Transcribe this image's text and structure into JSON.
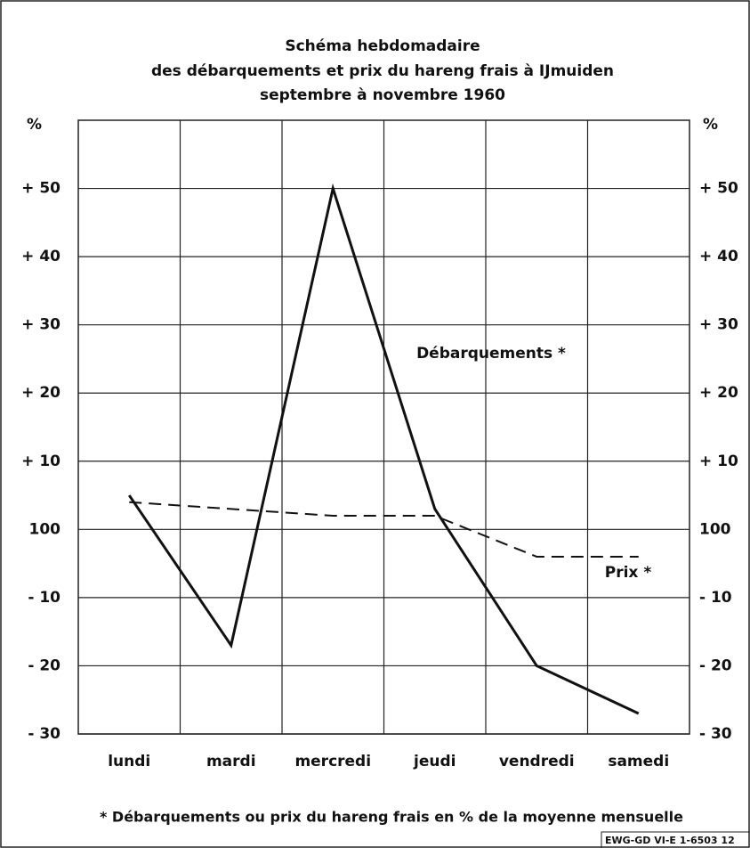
{
  "chart_data": {
    "type": "line",
    "title": [
      "Schéma hebdomadaire",
      "des débarquements et prix du hareng frais à IJmuiden",
      "septembre à novembre 1960"
    ],
    "y_axis_label": "%",
    "y2_axis_label": "%",
    "categories": [
      "lundi",
      "mardi",
      "mercredi",
      "jeudi",
      "vendredi",
      "samedi"
    ],
    "series": [
      {
        "name": "Débarquements *",
        "color": "#111111",
        "line_style": "solid",
        "values": [
          5,
          -17,
          50,
          3,
          -20,
          -27
        ]
      },
      {
        "name": "Prix *",
        "color": "#111111",
        "line_style": "dashed",
        "values": [
          4,
          3,
          2,
          2,
          -4,
          -4
        ]
      }
    ],
    "ylim": [
      -30,
      60
    ],
    "yticks": [
      {
        "value": -30,
        "label": "- 30"
      },
      {
        "value": -20,
        "label": "- 20"
      },
      {
        "value": -10,
        "label": "- 10"
      },
      {
        "value": 0,
        "label": "100"
      },
      {
        "value": 10,
        "label": "+ 10"
      },
      {
        "value": 20,
        "label": "+ 20"
      },
      {
        "value": 30,
        "label": "+ 30"
      },
      {
        "value": 40,
        "label": "+ 40"
      },
      {
        "value": 50,
        "label": "+ 50"
      }
    ],
    "grid": true,
    "footnote": "* Débarquements ou prix du hareng frais en % de la moyenne mensuelle",
    "source_code": "EWG-GD VI-E 1-6503 12"
  }
}
